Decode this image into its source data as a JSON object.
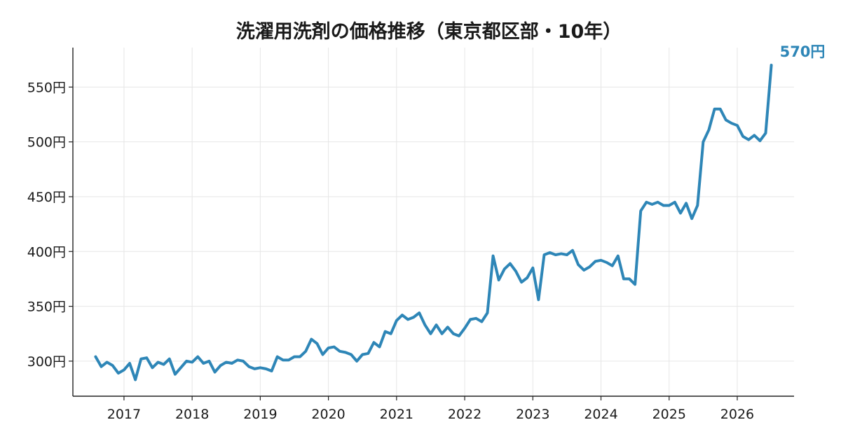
{
  "chart_data": {
    "type": "line",
    "title": "洗濯用洗剤の価格推移（東京都区部・10年）",
    "xlabel": "",
    "ylabel": "",
    "y_unit": "円",
    "ylim": [
      268,
      586
    ],
    "xlim": [
      "2016-04",
      "2026-11"
    ],
    "grid": true,
    "line_color": "#2e86b7",
    "axis_color": "#222222",
    "grid_color": "#e6e6e6",
    "y_ticks": [
      "300円",
      "350円",
      "400円",
      "450円",
      "500円",
      "550円"
    ],
    "x_ticks": [
      "2017",
      "2018",
      "2019",
      "2020",
      "2021",
      "2022",
      "2023",
      "2024",
      "2025",
      "2026"
    ],
    "end_label": "570円",
    "series": [
      {
        "x": [
          "2016-08",
          "2016-09",
          "2016-10",
          "2016-11",
          "2016-12",
          "2017-01",
          "2017-02",
          "2017-03",
          "2017-04",
          "2017-05",
          "2017-06",
          "2017-07",
          "2017-08",
          "2017-09",
          "2017-10",
          "2017-11",
          "2017-12",
          "2018-01",
          "2018-02",
          "2018-03",
          "2018-04",
          "2018-05",
          "2018-06",
          "2018-07",
          "2018-08",
          "2018-09",
          "2018-10",
          "2018-11",
          "2018-12",
          "2019-01",
          "2019-02",
          "2019-03",
          "2019-04",
          "2019-05",
          "2019-06",
          "2019-07",
          "2019-08",
          "2019-09",
          "2019-10",
          "2019-11",
          "2019-12",
          "2020-01",
          "2020-02",
          "2020-03",
          "2020-04",
          "2020-05",
          "2020-06",
          "2020-07",
          "2020-08",
          "2020-09",
          "2020-10",
          "2020-11",
          "2020-12",
          "2021-01",
          "2021-02",
          "2021-03",
          "2021-04",
          "2021-05",
          "2021-06",
          "2021-07",
          "2021-08",
          "2021-09",
          "2021-10",
          "2021-11",
          "2021-12",
          "2022-01",
          "2022-02",
          "2022-03",
          "2022-04",
          "2022-05",
          "2022-06",
          "2022-07",
          "2022-08",
          "2022-09",
          "2022-10",
          "2022-11",
          "2022-12",
          "2023-01",
          "2023-02",
          "2023-03",
          "2023-04",
          "2023-05",
          "2023-06",
          "2023-07",
          "2023-08",
          "2023-09",
          "2023-10",
          "2023-11",
          "2023-12",
          "2024-01",
          "2024-02",
          "2024-03",
          "2024-04",
          "2024-05",
          "2024-06",
          "2024-07",
          "2024-08",
          "2024-09",
          "2024-10",
          "2024-11",
          "2024-12",
          "2025-01",
          "2025-02",
          "2025-03",
          "2025-04",
          "2025-05",
          "2025-06",
          "2025-07",
          "2025-08",
          "2025-09",
          "2025-10",
          "2025-11",
          "2025-12",
          "2026-01",
          "2026-02",
          "2026-03",
          "2026-04",
          "2026-05",
          "2026-06",
          "2026-07"
        ],
        "values": [
          304,
          295,
          299,
          296,
          289,
          292,
          298,
          283,
          302,
          303,
          294,
          299,
          297,
          302,
          288,
          294,
          300,
          299,
          304,
          298,
          300,
          290,
          296,
          299,
          298,
          301,
          300,
          295,
          293,
          294,
          293,
          291,
          304,
          301,
          301,
          304,
          304,
          309,
          320,
          316,
          306,
          312,
          313,
          309,
          308,
          306,
          300,
          306,
          307,
          317,
          313,
          327,
          325,
          337,
          342,
          338,
          340,
          344,
          333,
          325,
          333,
          325,
          331,
          325,
          323,
          330,
          338,
          339,
          336,
          344,
          396,
          374,
          384,
          389,
          382,
          372,
          376,
          385,
          356,
          397,
          399,
          397,
          398,
          397,
          401,
          388,
          383,
          386,
          391,
          392,
          390,
          387,
          396,
          375,
          375,
          370,
          437,
          445,
          443,
          445,
          442,
          442,
          445,
          435,
          444,
          430,
          442,
          500,
          511,
          530,
          530,
          520,
          517,
          515,
          505,
          502,
          506,
          501,
          508,
          570
        ]
      }
    ]
  }
}
